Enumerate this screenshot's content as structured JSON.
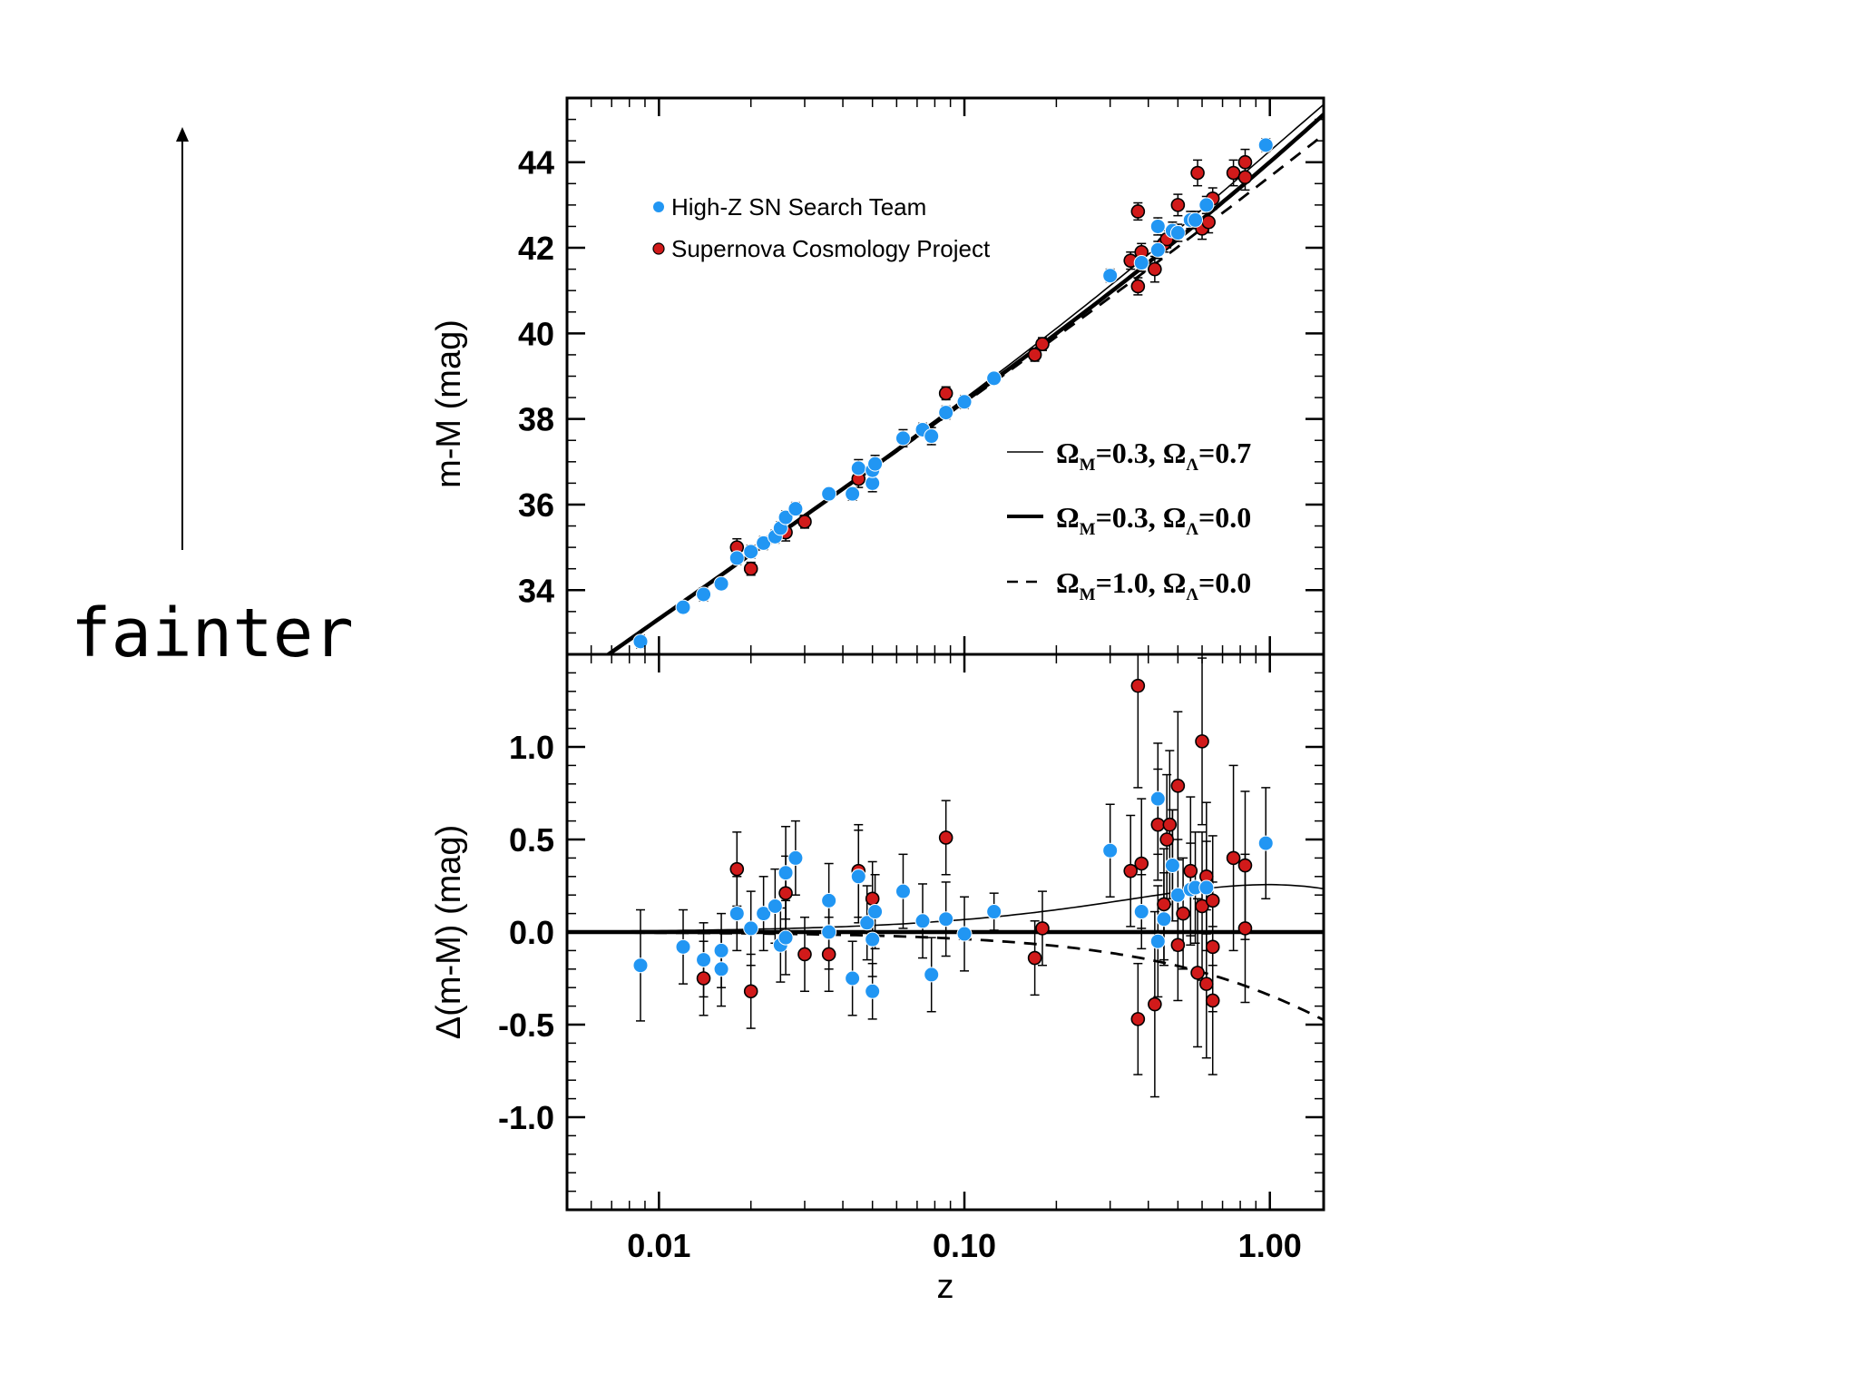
{
  "side_label": "fainter",
  "colors": {
    "high_z": "#2196f3",
    "scp": "#d11a1a",
    "axis": "#000000"
  },
  "chart_data": [
    {
      "id": "top",
      "type": "scatter",
      "xscale": "log",
      "xlim": [
        0.005,
        1.5
      ],
      "ylim": [
        32.5,
        45.5
      ],
      "ylabel": "m-M (mag)",
      "yticks": [
        34,
        36,
        38,
        40,
        42,
        44
      ],
      "ytick_labels": [
        "34",
        "36",
        "38",
        "40",
        "42",
        "44"
      ],
      "legend": [
        {
          "name": "High-Z SN Search Team",
          "color": "#2196f3"
        },
        {
          "name": "Supernova Cosmology Project",
          "color": "#d11a1a"
        }
      ],
      "model_legend": [
        {
          "style": "thin",
          "text": "Ω",
          "sub1": "M",
          "val1": "=0.3, Ω",
          "sub2": "Λ",
          "val2": "=0.7"
        },
        {
          "style": "thick",
          "text": "Ω",
          "sub1": "M",
          "val1": "=0.3, Ω",
          "sub2": "Λ",
          "val2": "=0.0"
        },
        {
          "style": "dashed",
          "text": "Ω",
          "sub1": "M",
          "val1": "=1.0, Ω",
          "sub2": "Λ",
          "val2": "=0.0"
        }
      ],
      "series": [
        {
          "name": "High-Z SN Search Team",
          "points": [
            [
              0.0087,
              32.8,
              0.15
            ],
            [
              0.012,
              33.6,
              0.12
            ],
            [
              0.014,
              33.9,
              0.15
            ],
            [
              0.016,
              34.15,
              0.12
            ],
            [
              0.018,
              34.75,
              0.15
            ],
            [
              0.02,
              34.9,
              0.15
            ],
            [
              0.022,
              35.1,
              0.15
            ],
            [
              0.024,
              35.25,
              0.15
            ],
            [
              0.025,
              35.45,
              0.15
            ],
            [
              0.026,
              35.7,
              0.15
            ],
            [
              0.028,
              35.9,
              0.15
            ],
            [
              0.036,
              36.25,
              0.12
            ],
            [
              0.043,
              36.25,
              0.15
            ],
            [
              0.045,
              36.85,
              0.2
            ],
            [
              0.05,
              36.5,
              0.2
            ],
            [
              0.05,
              36.8,
              0.2
            ],
            [
              0.051,
              36.95,
              0.2
            ],
            [
              0.063,
              37.55,
              0.2
            ],
            [
              0.073,
              37.75,
              0.15
            ],
            [
              0.078,
              37.6,
              0.2
            ],
            [
              0.087,
              38.15,
              0.15
            ],
            [
              0.1,
              38.4,
              0.15
            ],
            [
              0.125,
              38.95,
              0.1
            ],
            [
              0.3,
              41.35,
              0.15
            ],
            [
              0.38,
              41.65,
              0.2
            ],
            [
              0.43,
              41.95,
              0.2
            ],
            [
              0.43,
              42.5,
              0.2
            ],
            [
              0.48,
              42.4,
              0.2
            ],
            [
              0.5,
              42.35,
              0.2
            ],
            [
              0.55,
              42.65,
              0.2
            ],
            [
              0.57,
              42.65,
              0.2
            ],
            [
              0.62,
              43.0,
              0.2
            ],
            [
              0.97,
              44.4,
              0.15
            ]
          ]
        },
        {
          "name": "Supernova Cosmology Project",
          "points": [
            [
              0.018,
              35.0,
              0.2
            ],
            [
              0.02,
              34.5,
              0.15
            ],
            [
              0.026,
              35.35,
              0.2
            ],
            [
              0.03,
              35.6,
              0.15
            ],
            [
              0.045,
              36.6,
              0.2
            ],
            [
              0.05,
              36.8,
              0.2
            ],
            [
              0.087,
              38.6,
              0.15
            ],
            [
              0.17,
              39.5,
              0.15
            ],
            [
              0.18,
              39.75,
              0.15
            ],
            [
              0.35,
              41.7,
              0.2
            ],
            [
              0.37,
              41.1,
              0.2
            ],
            [
              0.37,
              42.85,
              0.2
            ],
            [
              0.38,
              41.9,
              0.2
            ],
            [
              0.42,
              41.5,
              0.3
            ],
            [
              0.45,
              42.1,
              0.2
            ],
            [
              0.46,
              42.2,
              0.2
            ],
            [
              0.5,
              43.0,
              0.25
            ],
            [
              0.58,
              43.75,
              0.3
            ],
            [
              0.6,
              42.45,
              0.25
            ],
            [
              0.63,
              42.6,
              0.25
            ],
            [
              0.65,
              43.15,
              0.25
            ],
            [
              0.76,
              43.75,
              0.3
            ],
            [
              0.83,
              44.0,
              0.3
            ],
            [
              0.83,
              43.65,
              0.3
            ]
          ]
        }
      ]
    },
    {
      "id": "bottom",
      "type": "scatter",
      "xscale": "log",
      "xlim": [
        0.005,
        1.5
      ],
      "ylim": [
        -1.5,
        1.5
      ],
      "xlabel": "z",
      "ylabel": "Δ(m-M) (mag)",
      "yticks": [
        -1.0,
        -0.5,
        0.0,
        0.5,
        1.0
      ],
      "ytick_labels": [
        "-1.0",
        "-0.5",
        "0.0",
        "0.5",
        "1.0"
      ],
      "xticks": [
        0.01,
        0.1,
        1.0
      ],
      "xtick_labels": [
        "0.01",
        "0.10",
        "1.00"
      ],
      "series": [
        {
          "name": "High-Z SN Search Team",
          "points": [
            [
              0.0087,
              -0.18,
              0.3
            ],
            [
              0.012,
              -0.08,
              0.2
            ],
            [
              0.014,
              -0.15,
              0.2
            ],
            [
              0.016,
              -0.2,
              0.2
            ],
            [
              0.016,
              -0.1,
              0.2
            ],
            [
              0.018,
              0.1,
              0.2
            ],
            [
              0.02,
              0.02,
              0.2
            ],
            [
              0.022,
              0.1,
              0.2
            ],
            [
              0.024,
              0.14,
              0.2
            ],
            [
              0.025,
              -0.07,
              0.2
            ],
            [
              0.026,
              -0.03,
              0.2
            ],
            [
              0.026,
              0.32,
              0.25
            ],
            [
              0.028,
              0.4,
              0.2
            ],
            [
              0.036,
              0.0,
              0.2
            ],
            [
              0.036,
              0.17,
              0.2
            ],
            [
              0.043,
              -0.25,
              0.2
            ],
            [
              0.045,
              0.3,
              0.25
            ],
            [
              0.048,
              0.05,
              0.2
            ],
            [
              0.05,
              -0.04,
              0.2
            ],
            [
              0.05,
              -0.32,
              0.15
            ],
            [
              0.051,
              0.11,
              0.2
            ],
            [
              0.063,
              0.22,
              0.2
            ],
            [
              0.073,
              0.06,
              0.2
            ],
            [
              0.078,
              -0.23,
              0.2
            ],
            [
              0.087,
              0.07,
              0.2
            ],
            [
              0.1,
              -0.01,
              0.2
            ],
            [
              0.125,
              0.11,
              0.1
            ],
            [
              0.3,
              0.44,
              0.25
            ],
            [
              0.38,
              0.11,
              0.2
            ],
            [
              0.43,
              0.72,
              0.3
            ],
            [
              0.43,
              -0.05,
              0.3
            ],
            [
              0.45,
              0.07,
              0.25
            ],
            [
              0.48,
              0.36,
              0.3
            ],
            [
              0.5,
              0.2,
              0.3
            ],
            [
              0.55,
              0.23,
              0.25
            ],
            [
              0.57,
              0.24,
              0.3
            ],
            [
              0.62,
              0.24,
              0.25
            ],
            [
              0.97,
              0.48,
              0.3
            ]
          ]
        },
        {
          "name": "Supernova Cosmology Project",
          "points": [
            [
              0.014,
              -0.25,
              0.2
            ],
            [
              0.018,
              0.34,
              0.2
            ],
            [
              0.02,
              -0.32,
              0.2
            ],
            [
              0.026,
              0.21,
              0.2
            ],
            [
              0.03,
              -0.12,
              0.2
            ],
            [
              0.036,
              -0.12,
              0.2
            ],
            [
              0.045,
              0.33,
              0.25
            ],
            [
              0.05,
              0.18,
              0.2
            ],
            [
              0.087,
              0.51,
              0.2
            ],
            [
              0.17,
              -0.14,
              0.2
            ],
            [
              0.18,
              0.02,
              0.2
            ],
            [
              0.35,
              0.33,
              0.3
            ],
            [
              0.37,
              1.33,
              0.55
            ],
            [
              0.37,
              -0.47,
              0.3
            ],
            [
              0.38,
              0.37,
              0.35
            ],
            [
              0.42,
              -0.39,
              0.5
            ],
            [
              0.43,
              0.58,
              0.3
            ],
            [
              0.45,
              0.15,
              0.3
            ],
            [
              0.46,
              0.5,
              0.35
            ],
            [
              0.47,
              0.58,
              0.4
            ],
            [
              0.48,
              0.36,
              0.3
            ],
            [
              0.5,
              0.79,
              0.4
            ],
            [
              0.5,
              -0.07,
              0.3
            ],
            [
              0.52,
              0.1,
              0.3
            ],
            [
              0.55,
              0.33,
              0.4
            ],
            [
              0.58,
              -0.22,
              0.4
            ],
            [
              0.6,
              1.03,
              0.45
            ],
            [
              0.6,
              0.14,
              0.4
            ],
            [
              0.62,
              0.3,
              0.4
            ],
            [
              0.62,
              -0.28,
              0.4
            ],
            [
              0.65,
              0.17,
              0.35
            ],
            [
              0.65,
              -0.08,
              0.35
            ],
            [
              0.65,
              -0.37,
              0.4
            ],
            [
              0.76,
              0.4,
              0.5
            ],
            [
              0.83,
              0.36,
              0.4
            ],
            [
              0.83,
              0.02,
              0.4
            ]
          ]
        }
      ]
    }
  ]
}
